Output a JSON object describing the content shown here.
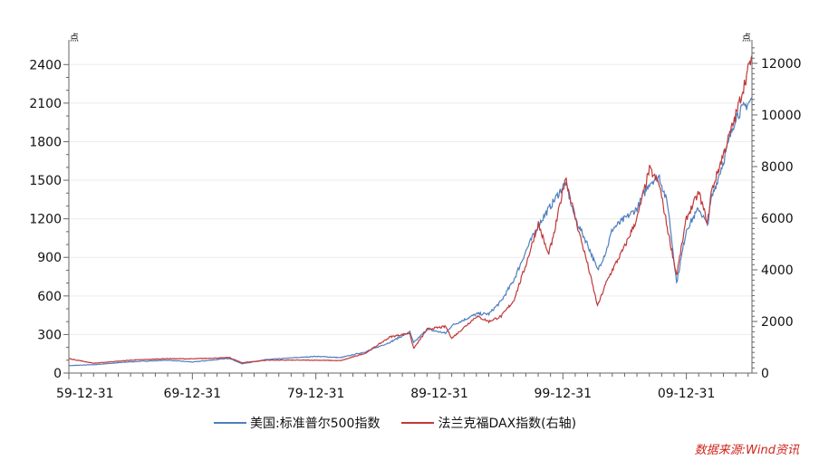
{
  "chart_data": {
    "type": "line",
    "title": "",
    "left_unit": "点",
    "right_unit": "点",
    "x_tick_labels": [
      "59-12-31",
      "69-12-31",
      "79-12-31",
      "89-12-31",
      "99-12-31",
      "09-12-31"
    ],
    "x_range": [
      1959.99,
      2015.3
    ],
    "left_axis": {
      "range": [
        0,
        2550
      ],
      "ticks": [
        0,
        300,
        600,
        900,
        1200,
        1500,
        1800,
        2100,
        2400
      ]
    },
    "right_axis": {
      "range": [
        0,
        12700
      ],
      "ticks": [
        0,
        2000,
        4000,
        6000,
        8000,
        10000,
        12000
      ]
    },
    "grid": true,
    "legend_position": "bottom",
    "series": [
      {
        "name": "美国:标准普尔500指数",
        "axis": "left",
        "color": "#4f7fbf",
        "x": [
          1960,
          1962,
          1965,
          1968,
          1970,
          1973,
          1974,
          1976,
          1980,
          1982,
          1984,
          1986,
          1987.6,
          1987.9,
          1989,
          1990.5,
          1991,
          1993,
          1994,
          1995,
          1996,
          1997,
          1998,
          1999,
          2000.2,
          2001,
          2002,
          2002.8,
          2003.5,
          2004,
          2005,
          2006,
          2007,
          2007.8,
          2008.5,
          2009.2,
          2010,
          2011,
          2011.7,
          2012,
          2013,
          2014,
          2015.3
        ],
        "y": [
          58,
          65,
          88,
          100,
          86,
          115,
          72,
          105,
          130,
          120,
          165,
          240,
          320,
          235,
          340,
          310,
          370,
          460,
          460,
          560,
          720,
          950,
          1150,
          1300,
          1480,
          1200,
          1000,
          800,
          950,
          1120,
          1200,
          1280,
          1480,
          1530,
          1300,
          700,
          1120,
          1280,
          1150,
          1350,
          1650,
          2000,
          2130
        ]
      },
      {
        "name": "法兰克福DAX指数(右轴)",
        "axis": "right",
        "color": "#c0393b",
        "x": [
          1960,
          1962,
          1965,
          1968,
          1970,
          1973,
          1974,
          1976,
          1980,
          1982,
          1984,
          1986,
          1987.6,
          1987.9,
          1988.5,
          1989,
          1990.5,
          1991,
          1993,
          1994,
          1995,
          1996,
          1997,
          1998,
          1998.8,
          1999.2,
          2000.2,
          2001,
          2002,
          2002.8,
          2003.5,
          2004,
          2005,
          2006,
          2007,
          2007.8,
          2008.5,
          2009.2,
          2010,
          2011,
          2011.7,
          2012,
          2013,
          2014,
          2015.3
        ],
        "y": [
          560,
          380,
          500,
          560,
          550,
          600,
          400,
          500,
          500,
          480,
          770,
          1400,
          1550,
          950,
          1350,
          1700,
          1800,
          1350,
          2200,
          2000,
          2200,
          2800,
          4200,
          5800,
          4600,
          5200,
          7600,
          6000,
          4200,
          2600,
          3500,
          4000,
          4900,
          6000,
          7900,
          7300,
          5500,
          3800,
          6000,
          7000,
          5800,
          7000,
          8500,
          10000,
          12300
        ]
      }
    ],
    "source_text": "数据来源:Wind资讯"
  }
}
